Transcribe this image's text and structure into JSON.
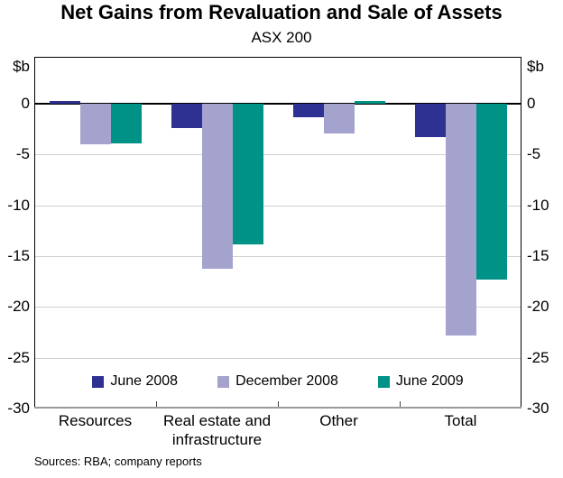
{
  "title": "Net Gains from Revaluation and Sale of Assets",
  "subtitle": "ASX 200",
  "footer": "Sources: RBA; company reports",
  "y_axis": {
    "unit_label": "$b",
    "ticks": [
      0,
      -5,
      -10,
      -15,
      -20,
      -25,
      -30
    ]
  },
  "colors": {
    "june_2008": "#2e3192",
    "december_2008": "#a4a3ce",
    "june_2009": "#009287",
    "gridline": "#cfcfcf",
    "zero_line": "#000000",
    "bottom_axis": "#9a9a9a"
  },
  "chart_data": {
    "type": "bar",
    "title": "Net Gains from Revaluation and Sale of Assets",
    "subtitle": "ASX 200",
    "categories": [
      "Resources",
      "Real estate and infrastructure",
      "Other",
      "Total"
    ],
    "series": [
      {
        "name": "June 2008",
        "color": "#2e3192",
        "values": [
          0.3,
          -2.4,
          -1.3,
          -3.3
        ]
      },
      {
        "name": "December 2008",
        "color": "#a4a3ce",
        "values": [
          -4.0,
          -16.2,
          -2.9,
          -22.8
        ]
      },
      {
        "name": "June 2009",
        "color": "#009287",
        "values": [
          -3.9,
          -13.8,
          0.3,
          -17.3
        ]
      }
    ],
    "ylabel": "$b",
    "ylim": [
      -30,
      4.6
    ],
    "yticks": [
      0,
      -5,
      -10,
      -15,
      -20,
      -25,
      -30
    ],
    "grid": true,
    "legend_position": "bottom-inside"
  }
}
